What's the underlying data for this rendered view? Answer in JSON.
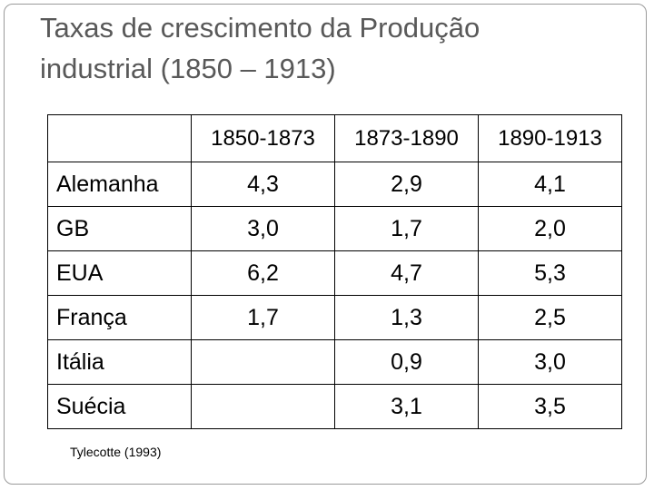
{
  "slide": {
    "title_line1": "Taxas de crescimento da Produção",
    "title_line2": "industrial (1850 – 1913)",
    "source": "Tylecotte (1993)"
  },
  "table": {
    "headers": [
      "1850-1873",
      "1873-1890",
      "1890-1913"
    ],
    "rows": [
      {
        "country": "Alemanha",
        "values": [
          "4,3",
          "2,9",
          "4,1"
        ]
      },
      {
        "country": "GB",
        "values": [
          "3,0",
          "1,7",
          "2,0"
        ]
      },
      {
        "country": "EUA",
        "values": [
          "6,2",
          "4,7",
          "5,3"
        ]
      },
      {
        "country": "França",
        "values": [
          "1,7",
          "1,3",
          "2,5"
        ]
      },
      {
        "country": "Itália",
        "values": [
          "",
          "0,9",
          "3,0"
        ]
      },
      {
        "country": "Suécia",
        "values": [
          "",
          "3,1",
          "3,5"
        ]
      }
    ]
  }
}
